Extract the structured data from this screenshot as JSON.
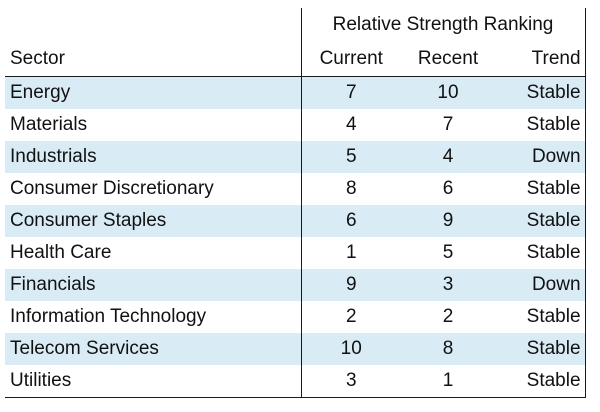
{
  "table": {
    "group_header": "Relative Strength Ranking",
    "headers": {
      "sector": "Sector",
      "current": "Current",
      "recent": "Recent",
      "trend": "Trend"
    },
    "row_shading_color": "#d9ecf5",
    "rows": [
      {
        "sector": "Energy",
        "current": "7",
        "recent": "10",
        "trend": "Stable",
        "shaded": true
      },
      {
        "sector": "Materials",
        "current": "4",
        "recent": "7",
        "trend": "Stable",
        "shaded": false
      },
      {
        "sector": "Industrials",
        "current": "5",
        "recent": "4",
        "trend": "Down",
        "shaded": true
      },
      {
        "sector": "Consumer Discretionary",
        "current": "8",
        "recent": "6",
        "trend": "Stable",
        "shaded": false
      },
      {
        "sector": "Consumer Staples",
        "current": "6",
        "recent": "9",
        "trend": "Stable",
        "shaded": true
      },
      {
        "sector": "Health Care",
        "current": "1",
        "recent": "5",
        "trend": "Stable",
        "shaded": false
      },
      {
        "sector": "Financials",
        "current": "9",
        "recent": "3",
        "trend": "Down",
        "shaded": true
      },
      {
        "sector": "Information Technology",
        "current": "2",
        "recent": "2",
        "trend": "Stable",
        "shaded": false
      },
      {
        "sector": "Telecom Services",
        "current": "10",
        "recent": "8",
        "trend": "Stable",
        "shaded": true
      },
      {
        "sector": "Utilities",
        "current": "3",
        "recent": "1",
        "trend": "Stable",
        "shaded": false
      }
    ]
  }
}
